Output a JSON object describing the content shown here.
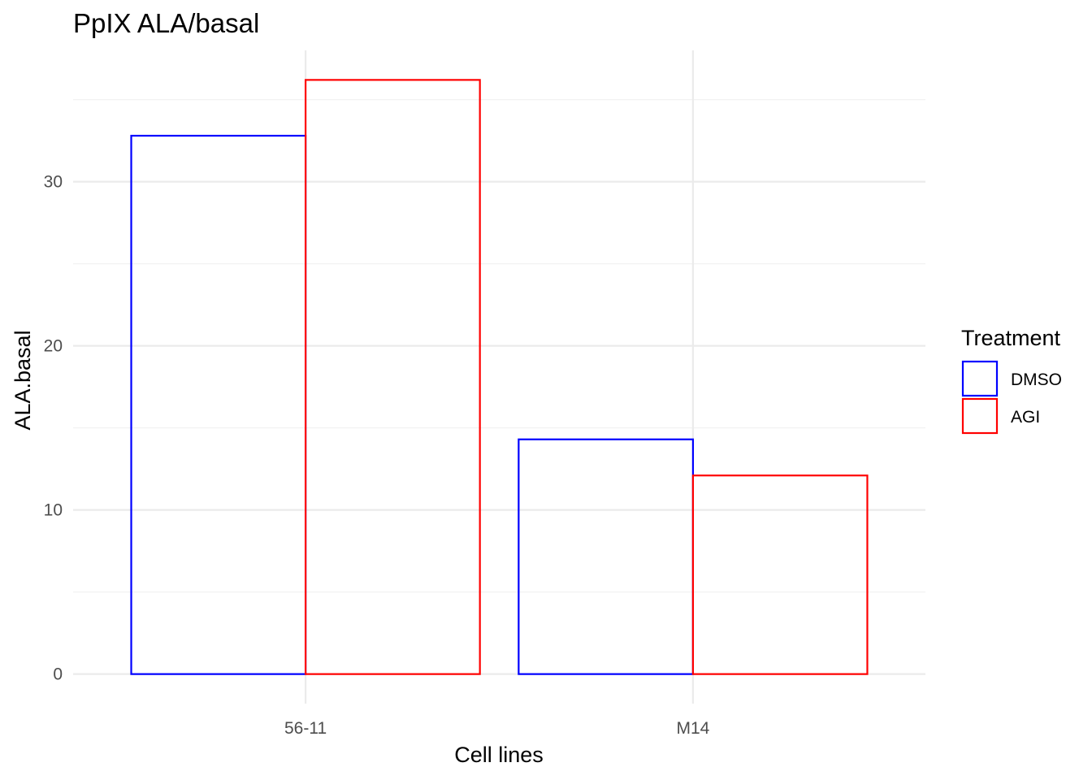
{
  "chart_data": {
    "type": "bar",
    "title": "PpIX ALA/basal",
    "xlabel": "Cell lines",
    "ylabel": "ALA.basal",
    "categories": [
      "56-11",
      "M14"
    ],
    "series": [
      {
        "name": "DMSO",
        "values": [
          32.8,
          14.3
        ],
        "color": "#0000ff"
      },
      {
        "name": "AGI",
        "values": [
          36.2,
          12.1
        ],
        "color": "#ff0000"
      }
    ],
    "ylim": [
      -1.8,
      38.0
    ],
    "yticks": [
      0,
      10,
      20,
      30
    ],
    "grid": true,
    "legend": {
      "title": "Treatment",
      "position": "right"
    },
    "fill": "none"
  }
}
